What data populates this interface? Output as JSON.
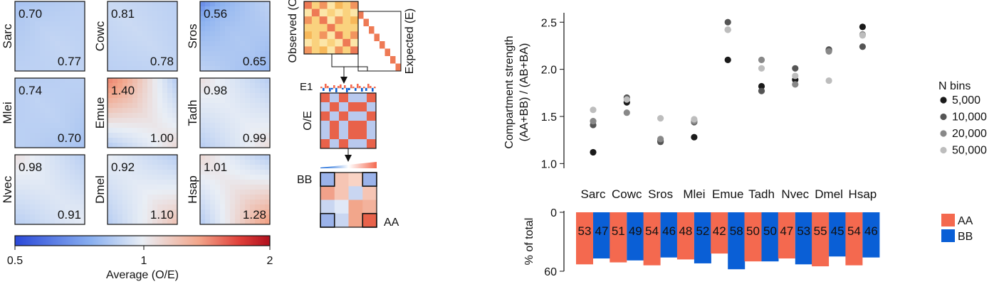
{
  "chart_data": [
    {
      "type": "heatmap",
      "panels": [
        {
          "species": "Sarc",
          "corner_top": "0.70",
          "corner_bottom": "0.77"
        },
        {
          "species": "Cowc",
          "corner_top": "0.81",
          "corner_bottom": "0.78"
        },
        {
          "species": "Sros",
          "corner_top": "0.56",
          "corner_bottom": "0.65"
        },
        {
          "species": "Mlei",
          "corner_top": "0.74",
          "corner_bottom": "0.70"
        },
        {
          "species": "Emue",
          "corner_top": "1.40",
          "corner_bottom": "1.00"
        },
        {
          "species": "Tadh",
          "corner_top": "0.98",
          "corner_bottom": "0.99"
        },
        {
          "species": "Nvec",
          "corner_top": "0.98",
          "corner_bottom": "0.91"
        },
        {
          "species": "Dmel",
          "corner_top": "0.92",
          "corner_bottom": "1.10"
        },
        {
          "species": "Hsap",
          "corner_top": "1.01",
          "corner_bottom": "1.28"
        }
      ],
      "colorbar": {
        "ticks": [
          "0.5",
          "1",
          "2"
        ],
        "label": "Average (O/E)"
      }
    },
    {
      "type": "diagram",
      "labels": {
        "observed": "Observed (O)",
        "expected": "Expected (E)",
        "e1": "E1",
        "oe": "O/E",
        "bb": "BB",
        "aa": "AA"
      }
    },
    {
      "type": "scatter",
      "ylabel": [
        "Compartment strength",
        "(AA+BB) / (AB+BA)"
      ],
      "ylim": [
        0.95,
        2.6
      ],
      "yticks": [
        "1.0",
        "1.5",
        "2.0",
        "2.5"
      ],
      "categories": [
        "Sarc",
        "Cowc",
        "Sros",
        "Mlei",
        "Emue",
        "Tadh",
        "Nvec",
        "Dmel",
        "Hsap"
      ],
      "legend_title": "N bins",
      "legend_position": "right",
      "series": [
        {
          "name": "5,000",
          "color": "#1a1a1a",
          "values": [
            1.12,
            1.65,
            1.24,
            1.28,
            2.1,
            1.82,
            1.89,
            2.2,
            2.45
          ]
        },
        {
          "name": "10,000",
          "color": "#555555",
          "values": [
            1.41,
            1.7,
            1.23,
            1.44,
            2.5,
            1.77,
            2.01,
            2.21,
            2.24
          ]
        },
        {
          "name": "20,000",
          "color": "#888888",
          "values": [
            1.45,
            1.54,
            1.26,
            1.45,
            2.42,
            2.1,
            1.84,
            2.19,
            2.37
          ]
        },
        {
          "name": "50,000",
          "color": "#bdbdbd",
          "values": [
            1.57,
            1.68,
            1.48,
            1.47,
            2.42,
            2.01,
            1.93,
            1.88,
            2.36
          ]
        }
      ]
    },
    {
      "type": "bar",
      "ylabel": "% of total",
      "ylim": [
        0,
        60
      ],
      "yticks": [
        "0",
        "60"
      ],
      "orientation": "downward",
      "categories": [
        "Sarc",
        "Cowc",
        "Sros",
        "Mlei",
        "Emue",
        "Tadh",
        "Nvec",
        "Dmel",
        "Hsap"
      ],
      "series": [
        {
          "name": "AA",
          "color": "#f4694f",
          "values": [
            53,
            51,
            54,
            48,
            42,
            50,
            47,
            55,
            54
          ]
        },
        {
          "name": "BB",
          "color": "#0a5fd6",
          "values": [
            47,
            49,
            46,
            52,
            58,
            50,
            53,
            45,
            46
          ]
        }
      ]
    }
  ]
}
